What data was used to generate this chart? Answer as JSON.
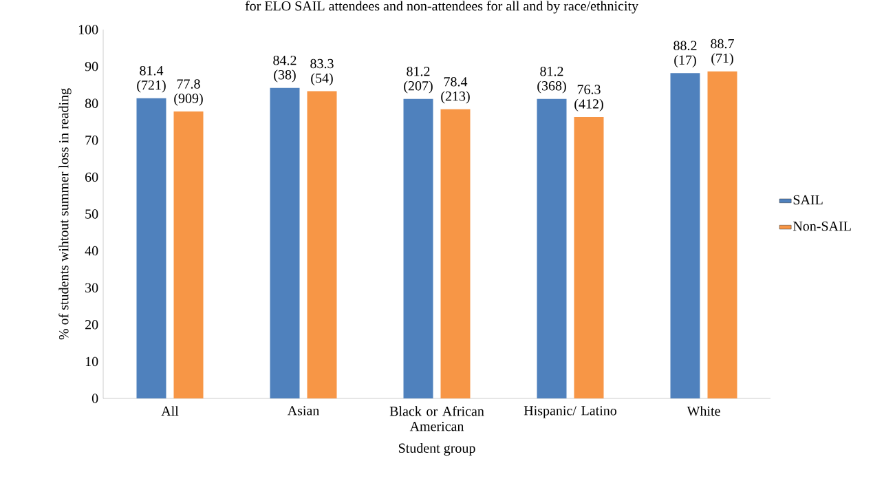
{
  "chart_data": {
    "type": "bar",
    "title": "for ELO SAIL attendees and non-attendees for all and by race/ethnicity",
    "xlabel": "Student group",
    "ylabel": "% of students wihtout summer loss in reading",
    "categories": [
      "All",
      "Asian",
      "Black or African American",
      "Hispanic/ Latino",
      "White"
    ],
    "series": [
      {
        "name": "SAIL",
        "color": "#4f81bd",
        "values": [
          81.4,
          84.2,
          81.2,
          81.2,
          88.2
        ],
        "value_labels": [
          "81.4 (721)",
          "84.2 (38)",
          "81.2 (207)",
          "81.2 (368)",
          "88.2 (17)"
        ]
      },
      {
        "name": "Non-SAIL",
        "color": "#f79646",
        "values": [
          77.8,
          83.3,
          78.4,
          76.3,
          88.7
        ],
        "value_labels": [
          "77.8 (909)",
          "83.3 (54)",
          "78.4 (213)",
          "76.3 (412)",
          "88.7 (71)"
        ]
      }
    ],
    "ylim": [
      0,
      100
    ],
    "yticks": [
      0,
      10,
      20,
      30,
      40,
      50,
      60,
      70,
      80,
      90,
      100
    ],
    "grid": false,
    "legend": "right"
  }
}
